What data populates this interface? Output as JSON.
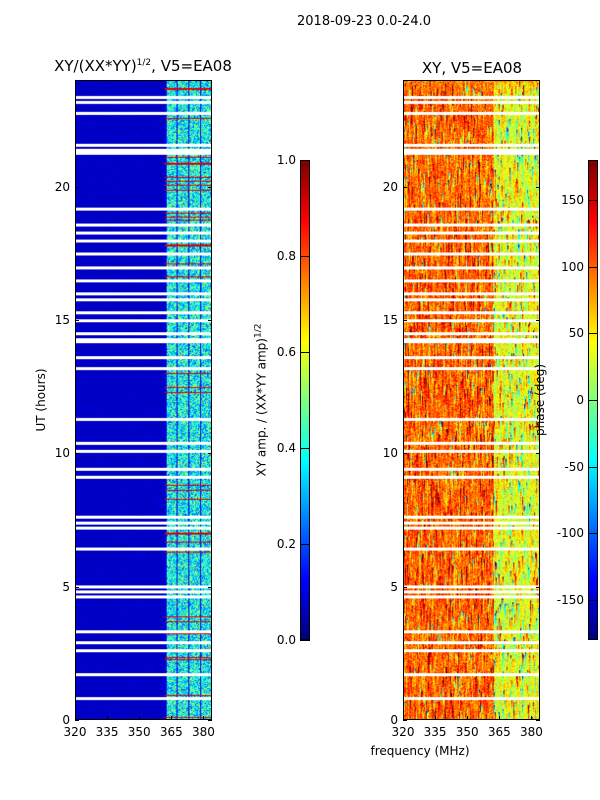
{
  "suptitle": "2018-09-23 0.0-24.0",
  "xlabel": "frequency (MHz)",
  "ylabel": "UT (hours)",
  "chart_data": [
    {
      "type": "heatmap",
      "title": "XY/(XX*YY)",
      "title_exp": "1/2",
      "title_suffix": ", V5=EA08",
      "xlabel": "frequency (MHz)",
      "ylabel": "UT (hours)",
      "xlim": [
        320,
        384
      ],
      "ylim": [
        0,
        24
      ],
      "xticks": [
        320,
        335,
        350,
        365,
        380
      ],
      "yticks": [
        0,
        5,
        10,
        15,
        20
      ],
      "colormap": "jet",
      "colorbar": {
        "label": "XY amp. / (XX*YY amp)",
        "label_exp": "1/2",
        "range": [
          0.0,
          1.0
        ],
        "ticks": [
          "0.0",
          "0.2",
          "0.4",
          "0.6",
          "0.8",
          "1.0"
        ]
      },
      "description_values": {
        "low_band_level": 0.05,
        "high_band_start_mhz": 362,
        "high_band_level": 0.4,
        "peak_level": 0.9
      }
    },
    {
      "type": "heatmap",
      "title": "XY, V5=EA08",
      "xlabel": "frequency (MHz)",
      "xlim": [
        320,
        384
      ],
      "ylim": [
        0,
        24
      ],
      "xticks": [
        320,
        335,
        350,
        365,
        380
      ],
      "yticks": [
        0,
        5,
        10,
        15,
        20
      ],
      "colormap": "jet",
      "colorbar": {
        "label": "phase (deg)",
        "range": [
          -180,
          180
        ],
        "ticks": [
          "-150",
          "-100",
          "-50",
          "0",
          "50",
          "100",
          "150"
        ]
      }
    }
  ],
  "flagged_ut": [
    0.8,
    1.7,
    2.6,
    2.9,
    3.3,
    4.6,
    4.8,
    5.0,
    6.4,
    7.2,
    7.4,
    7.6,
    9.1,
    9.4,
    10.1,
    10.4,
    11.3,
    13.2,
    13.6,
    14.2,
    14.3,
    14.5,
    15.0,
    15.3,
    15.8,
    16.0,
    16.5,
    17.0,
    17.5,
    18.0,
    18.3,
    18.6,
    19.2,
    21.3,
    21.4,
    21.6,
    22.8,
    23.2,
    23.4
  ]
}
